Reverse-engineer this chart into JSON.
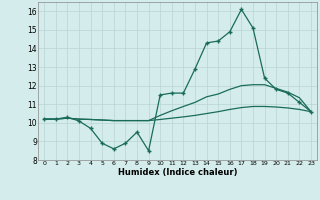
{
  "xlabel": "Humidex (Indice chaleur)",
  "x": [
    0,
    1,
    2,
    3,
    4,
    5,
    6,
    7,
    8,
    9,
    10,
    11,
    12,
    13,
    14,
    15,
    16,
    17,
    18,
    19,
    20,
    21,
    22,
    23
  ],
  "line1": [
    10.2,
    10.2,
    10.3,
    10.1,
    9.7,
    8.9,
    8.6,
    8.9,
    9.5,
    8.5,
    11.5,
    11.6,
    11.6,
    12.9,
    14.3,
    14.4,
    14.9,
    16.1,
    15.1,
    12.4,
    11.8,
    11.6,
    11.1,
    10.6
  ],
  "line2": [
    10.2,
    10.2,
    10.25,
    10.2,
    10.18,
    10.15,
    10.12,
    10.12,
    10.12,
    10.12,
    10.18,
    10.25,
    10.32,
    10.4,
    10.5,
    10.6,
    10.72,
    10.82,
    10.88,
    10.88,
    10.85,
    10.8,
    10.72,
    10.6
  ],
  "line3": [
    10.2,
    10.2,
    10.25,
    10.2,
    10.18,
    10.15,
    10.12,
    10.12,
    10.12,
    10.12,
    10.4,
    10.65,
    10.88,
    11.1,
    11.4,
    11.55,
    11.8,
    12.0,
    12.05,
    12.05,
    11.85,
    11.65,
    11.35,
    10.6
  ],
  "ylim": [
    8,
    16.5
  ],
  "yticks": [
    8,
    9,
    10,
    11,
    12,
    13,
    14,
    15,
    16
  ],
  "xticks": [
    0,
    1,
    2,
    3,
    4,
    5,
    6,
    7,
    8,
    9,
    10,
    11,
    12,
    13,
    14,
    15,
    16,
    17,
    18,
    19,
    20,
    21,
    22,
    23
  ],
  "line_color": "#1a6b5a",
  "bg_color": "#d4edec",
  "grid_color": "#b8d4d2"
}
